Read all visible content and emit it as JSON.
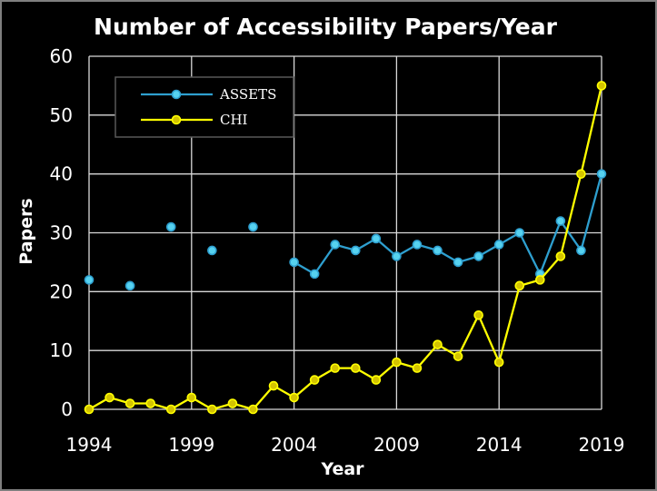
{
  "chart_data": {
    "type": "line",
    "title": "Number of Accessibility Papers/Year",
    "xlabel": "Year",
    "ylabel": "Papers",
    "xlim": [
      1994,
      2019
    ],
    "ylim": [
      0,
      60
    ],
    "x_ticks": [
      1994,
      1999,
      2004,
      2009,
      2014,
      2019
    ],
    "y_ticks": [
      0,
      10,
      20,
      30,
      40,
      50,
      60
    ],
    "grid": "vertical and horizontal",
    "legend_position": "top-left",
    "colors": {
      "background": "#000000",
      "grid": "#d9d9d9",
      "text": "#ffffff"
    },
    "series": [
      {
        "name": "ASSETS",
        "color": "#2e9fcf",
        "marker_color": "#56d2f0",
        "points": [
          [
            1994,
            22
          ],
          [
            1996,
            21
          ],
          [
            1998,
            31
          ],
          [
            2000,
            27
          ],
          [
            2002,
            31
          ],
          [
            2004,
            25
          ],
          [
            2005,
            23
          ],
          [
            2006,
            28
          ],
          [
            2007,
            27
          ],
          [
            2008,
            29
          ],
          [
            2009,
            26
          ],
          [
            2010,
            28
          ],
          [
            2011,
            27
          ],
          [
            2012,
            25
          ],
          [
            2013,
            26
          ],
          [
            2014,
            28
          ],
          [
            2015,
            30
          ],
          [
            2016,
            23
          ],
          [
            2017,
            32
          ],
          [
            2018,
            27
          ],
          [
            2019,
            40
          ]
        ],
        "connected_from": 2004
      },
      {
        "name": "CHI",
        "color": "#ffff00",
        "marker_color": "#d4c400",
        "points": [
          [
            1994,
            0
          ],
          [
            1995,
            2
          ],
          [
            1996,
            1
          ],
          [
            1997,
            1
          ],
          [
            1998,
            0
          ],
          [
            1999,
            2
          ],
          [
            2000,
            0
          ],
          [
            2001,
            1
          ],
          [
            2002,
            0
          ],
          [
            2003,
            4
          ],
          [
            2004,
            2
          ],
          [
            2005,
            5
          ],
          [
            2006,
            7
          ],
          [
            2007,
            7
          ],
          [
            2008,
            5
          ],
          [
            2009,
            8
          ],
          [
            2010,
            7
          ],
          [
            2011,
            11
          ],
          [
            2012,
            9
          ],
          [
            2013,
            16
          ],
          [
            2014,
            8
          ],
          [
            2015,
            21
          ],
          [
            2016,
            22
          ],
          [
            2017,
            26
          ],
          [
            2018,
            40
          ],
          [
            2019,
            55
          ]
        ],
        "connected_from": 1994
      }
    ]
  }
}
